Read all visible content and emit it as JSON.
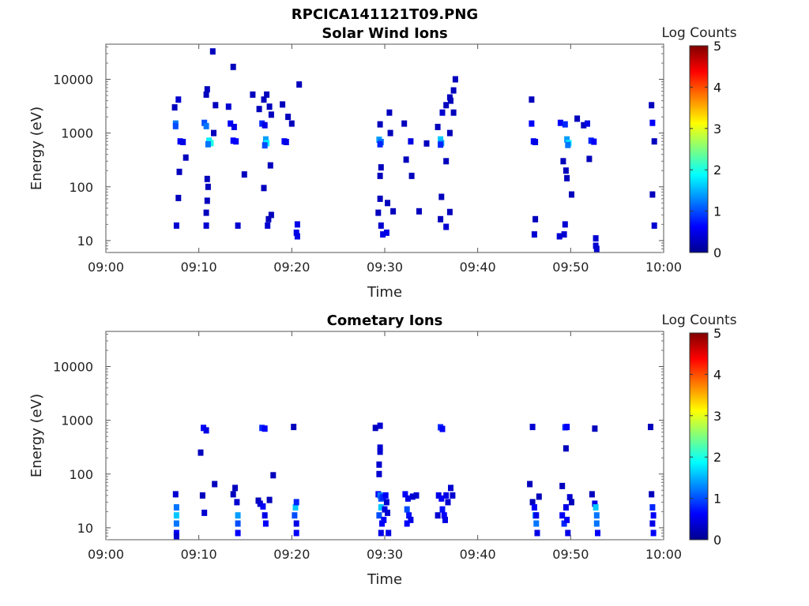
{
  "figure": {
    "title": "RPCICA141121T09.PNG"
  },
  "colorbar": {
    "label": "Log Counts",
    "ticks": [
      "0",
      "1",
      "2",
      "3",
      "4",
      "5"
    ],
    "range": [
      0,
      5
    ],
    "colormap": "jet"
  },
  "chart_data": [
    {
      "type": "heatmap",
      "title": "Solar Wind Ions",
      "xlabel": "Time",
      "ylabel": "Energy (eV)",
      "x_ticks": [
        "09:00",
        "09:10",
        "09:20",
        "09:30",
        "09:40",
        "09:50",
        "10:00"
      ],
      "xlim_minutes": [
        0,
        60
      ],
      "y_ticks": [
        "10",
        "100",
        "1000",
        "10000"
      ],
      "ylim": [
        6,
        45000
      ],
      "y_scale": "log",
      "z_label": "Log Counts",
      "z_range": [
        0,
        5
      ],
      "points": [
        [
          7.5,
          1500,
          1.2
        ],
        [
          7.5,
          1350,
          1.0
        ],
        [
          8.0,
          700,
          0.6
        ],
        [
          8.3,
          680,
          0.5
        ],
        [
          7.8,
          4200,
          0.4
        ],
        [
          7.4,
          3000,
          0.3
        ],
        [
          7.9,
          190,
          0.3
        ],
        [
          7.8,
          62,
          0.3
        ],
        [
          7.6,
          19,
          0.4
        ],
        [
          8.6,
          350,
          0.3
        ],
        [
          10.6,
          1550,
          1.0
        ],
        [
          10.8,
          1350,
          1.2
        ],
        [
          11.1,
          720,
          1.8
        ],
        [
          11.3,
          650,
          2.0
        ],
        [
          11.0,
          620,
          1.2
        ],
        [
          10.9,
          6500,
          0.3
        ],
        [
          10.8,
          5200,
          0.3
        ],
        [
          11.5,
          33000,
          0.3
        ],
        [
          10.9,
          140,
          0.3
        ],
        [
          11.0,
          100,
          0.3
        ],
        [
          10.9,
          55,
          0.3
        ],
        [
          10.8,
          33,
          0.3
        ],
        [
          10.8,
          19,
          0.4
        ],
        [
          11.8,
          3300,
          0.3
        ],
        [
          11.6,
          1000,
          0.3
        ],
        [
          13.2,
          3100,
          0.4
        ],
        [
          13.7,
          17000,
          0.3
        ],
        [
          13.4,
          1500,
          0.6
        ],
        [
          13.8,
          1300,
          0.5
        ],
        [
          13.7,
          720,
          0.6
        ],
        [
          14.0,
          700,
          0.6
        ],
        [
          14.2,
          19,
          0.4
        ],
        [
          14.9,
          170,
          0.3
        ],
        [
          15.8,
          5200,
          0.3
        ],
        [
          16.5,
          2800,
          0.3
        ],
        [
          16.8,
          1500,
          0.8
        ],
        [
          17.1,
          1400,
          0.5
        ],
        [
          17.2,
          760,
          1.4
        ],
        [
          17.3,
          650,
          1.8
        ],
        [
          17.1,
          590,
          1.0
        ],
        [
          17.3,
          5200,
          0.3
        ],
        [
          17.0,
          4200,
          0.3
        ],
        [
          17.6,
          3100,
          0.3
        ],
        [
          17.8,
          2200,
          0.3
        ],
        [
          17.0,
          95,
          0.3
        ],
        [
          17.7,
          250,
          0.3
        ],
        [
          17.5,
          25,
          0.3
        ],
        [
          17.8,
          30,
          0.3
        ],
        [
          17.4,
          19,
          0.4
        ],
        [
          19.0,
          3400,
          0.3
        ],
        [
          19.2,
          700,
          0.6
        ],
        [
          19.4,
          680,
          0.5
        ],
        [
          19.6,
          2000,
          0.3
        ],
        [
          20.0,
          1500,
          0.3
        ],
        [
          20.8,
          8000,
          0.3
        ],
        [
          20.6,
          20,
          0.5
        ],
        [
          20.5,
          14,
          0.5
        ],
        [
          20.6,
          12,
          0.5
        ],
        [
          29.5,
          1450,
          0.3
        ],
        [
          29.4,
          750,
          1.4
        ],
        [
          29.6,
          680,
          1.2
        ],
        [
          29.5,
          620,
          0.8
        ],
        [
          29.6,
          230,
          0.3
        ],
        [
          29.5,
          160,
          0.3
        ],
        [
          29.5,
          60,
          0.3
        ],
        [
          29.3,
          33,
          0.3
        ],
        [
          29.6,
          19,
          0.4
        ],
        [
          29.8,
          13,
          0.5
        ],
        [
          30.2,
          14,
          0.5
        ],
        [
          30.5,
          2400,
          0.3
        ],
        [
          30.6,
          1000,
          0.3
        ],
        [
          30.3,
          50,
          0.3
        ],
        [
          30.9,
          35,
          0.3
        ],
        [
          32.1,
          1500,
          0.3
        ],
        [
          32.8,
          700,
          0.5
        ],
        [
          32.3,
          320,
          0.3
        ],
        [
          32.9,
          160,
          0.3
        ],
        [
          33.7,
          35,
          0.3
        ],
        [
          34.5,
          640,
          0.3
        ],
        [
          35.7,
          1300,
          0.3
        ],
        [
          36.0,
          760,
          1.6
        ],
        [
          36.1,
          650,
          1.4
        ],
        [
          36.0,
          610,
          0.8
        ],
        [
          36.2,
          2400,
          0.4
        ],
        [
          36.6,
          3300,
          0.3
        ],
        [
          37.0,
          4600,
          0.3
        ],
        [
          37.4,
          6200,
          0.3
        ],
        [
          37.1,
          4000,
          0.3
        ],
        [
          37.6,
          10000,
          0.3
        ],
        [
          37.4,
          2400,
          0.3
        ],
        [
          37.0,
          1000,
          0.3
        ],
        [
          36.1,
          65,
          0.3
        ],
        [
          36.0,
          25,
          0.3
        ],
        [
          36.6,
          18,
          0.4
        ],
        [
          37.0,
          34,
          0.3
        ],
        [
          36.6,
          300,
          0.3
        ],
        [
          45.8,
          4200,
          0.3
        ],
        [
          45.8,
          1500,
          0.6
        ],
        [
          46.0,
          700,
          0.6
        ],
        [
          46.2,
          680,
          0.5
        ],
        [
          46.2,
          25,
          0.3
        ],
        [
          46.1,
          13,
          0.4
        ],
        [
          48.9,
          1550,
          0.6
        ],
        [
          49.4,
          1450,
          0.8
        ],
        [
          49.6,
          760,
          1.4
        ],
        [
          49.8,
          650,
          1.8
        ],
        [
          49.7,
          600,
          1.2
        ],
        [
          49.2,
          300,
          0.3
        ],
        [
          49.5,
          200,
          0.3
        ],
        [
          49.6,
          145,
          0.3
        ],
        [
          50.1,
          72,
          0.3
        ],
        [
          48.8,
          12,
          0.4
        ],
        [
          49.3,
          13,
          0.4
        ],
        [
          49.4,
          20,
          0.4
        ],
        [
          50.7,
          1850,
          0.3
        ],
        [
          51.4,
          1400,
          0.3
        ],
        [
          51.8,
          1500,
          0.5
        ],
        [
          52.2,
          720,
          0.8
        ],
        [
          52.5,
          690,
          0.6
        ],
        [
          52.0,
          330,
          0.3
        ],
        [
          52.7,
          11,
          0.4
        ],
        [
          52.7,
          8,
          0.4
        ],
        [
          52.8,
          7,
          0.4
        ],
        [
          58.7,
          3300,
          0.3
        ],
        [
          58.8,
          1550,
          0.6
        ],
        [
          59.0,
          700,
          0.3
        ],
        [
          58.8,
          72,
          0.3
        ],
        [
          59.0,
          19,
          0.4
        ]
      ]
    },
    {
      "type": "heatmap",
      "title": "Cometary Ions",
      "xlabel": "Time",
      "ylabel": "Energy (eV)",
      "x_ticks": [
        "09:00",
        "09:10",
        "09:20",
        "09:30",
        "09:40",
        "09:50",
        "10:00"
      ],
      "xlim_minutes": [
        0,
        60
      ],
      "y_ticks": [
        "10",
        "100",
        "1000",
        "10000"
      ],
      "ylim": [
        6,
        45000
      ],
      "y_scale": "log",
      "z_label": "Log Counts",
      "z_range": [
        0,
        5
      ],
      "points": [
        [
          7.5,
          42,
          0.4
        ],
        [
          7.6,
          24,
          1.2
        ],
        [
          7.6,
          17,
          1.6
        ],
        [
          7.6,
          12,
          1.2
        ],
        [
          7.6,
          8,
          0.6
        ],
        [
          7.6,
          7,
          0.4
        ],
        [
          10.5,
          720,
          0.6
        ],
        [
          10.8,
          650,
          0.5
        ],
        [
          10.2,
          250,
          0.3
        ],
        [
          10.4,
          40,
          0.3
        ],
        [
          10.6,
          19,
          0.4
        ],
        [
          11.7,
          65,
          0.3
        ],
        [
          13.7,
          42,
          0.3
        ],
        [
          13.9,
          55,
          0.3
        ],
        [
          14.1,
          30,
          0.4
        ],
        [
          14.2,
          17,
          1.4
        ],
        [
          14.2,
          12,
          1.0
        ],
        [
          14.2,
          8,
          0.6
        ],
        [
          16.4,
          32,
          0.3
        ],
        [
          16.8,
          720,
          0.8
        ],
        [
          17.1,
          700,
          0.6
        ],
        [
          16.6,
          28,
          0.4
        ],
        [
          16.9,
          25,
          0.6
        ],
        [
          17.1,
          17,
          0.5
        ],
        [
          17.2,
          12,
          0.6
        ],
        [
          17.6,
          33,
          0.3
        ],
        [
          18.0,
          95,
          0.3
        ],
        [
          20.2,
          750,
          0.3
        ],
        [
          20.3,
          17,
          1.0
        ],
        [
          20.4,
          24,
          1.6
        ],
        [
          20.5,
          30,
          0.8
        ],
        [
          20.5,
          12,
          0.5
        ],
        [
          20.5,
          8,
          0.6
        ],
        [
          29.0,
          720,
          0.3
        ],
        [
          29.5,
          790,
          0.4
        ],
        [
          29.5,
          310,
          0.4
        ],
        [
          29.5,
          260,
          0.4
        ],
        [
          29.4,
          150,
          0.4
        ],
        [
          29.4,
          100,
          0.4
        ],
        [
          29.3,
          42,
          0.6
        ],
        [
          29.5,
          40,
          1.2
        ],
        [
          29.6,
          35,
          1.0
        ],
        [
          29.8,
          37,
          0.8
        ],
        [
          29.6,
          24,
          1.6
        ],
        [
          29.4,
          17,
          1.0
        ],
        [
          29.7,
          12,
          0.6
        ],
        [
          29.9,
          14,
          0.6
        ],
        [
          30.0,
          22,
          0.5
        ],
        [
          30.1,
          40,
          0.6
        ],
        [
          30.2,
          30,
          0.4
        ],
        [
          30.3,
          19,
          0.4
        ],
        [
          30.4,
          8,
          0.5
        ],
        [
          29.6,
          8,
          0.5
        ],
        [
          32.2,
          42,
          0.6
        ],
        [
          32.5,
          35,
          0.5
        ],
        [
          32.4,
          22,
          1.0
        ],
        [
          32.6,
          17,
          0.7
        ],
        [
          32.8,
          14,
          0.5
        ],
        [
          32.4,
          12,
          0.6
        ],
        [
          33.0,
          38,
          0.4
        ],
        [
          33.4,
          40,
          0.4
        ],
        [
          36.0,
          740,
          0.8
        ],
        [
          36.2,
          690,
          0.6
        ],
        [
          35.8,
          40,
          0.5
        ],
        [
          36.1,
          35,
          0.6
        ],
        [
          36.2,
          22,
          0.7
        ],
        [
          36.4,
          17,
          0.6
        ],
        [
          36.6,
          40,
          0.5
        ],
        [
          36.5,
          14,
          0.5
        ],
        [
          36.8,
          30,
          0.4
        ],
        [
          37.1,
          55,
          0.4
        ],
        [
          37.3,
          40,
          0.4
        ],
        [
          35.7,
          17,
          0.4
        ],
        [
          45.9,
          750,
          0.4
        ],
        [
          45.6,
          65,
          0.3
        ],
        [
          45.9,
          30,
          0.3
        ],
        [
          46.1,
          24,
          0.6
        ],
        [
          46.2,
          17,
          1.2
        ],
        [
          46.3,
          12,
          1.2
        ],
        [
          46.4,
          8,
          0.5
        ],
        [
          46.6,
          38,
          0.3
        ],
        [
          46.3,
          17,
          0.5
        ],
        [
          49.4,
          740,
          0.8
        ],
        [
          49.6,
          750,
          0.6
        ],
        [
          49.5,
          300,
          0.3
        ],
        [
          49.1,
          60,
          0.3
        ],
        [
          49.1,
          17,
          0.6
        ],
        [
          49.3,
          12,
          0.8
        ],
        [
          49.5,
          24,
          0.5
        ],
        [
          49.6,
          14,
          0.6
        ],
        [
          49.7,
          8,
          0.5
        ],
        [
          49.9,
          37,
          0.4
        ],
        [
          50.1,
          30,
          0.3
        ],
        [
          52.6,
          700,
          0.3
        ],
        [
          52.3,
          42,
          0.3
        ],
        [
          52.6,
          28,
          0.5
        ],
        [
          52.7,
          24,
          1.6
        ],
        [
          52.8,
          17,
          1.2
        ],
        [
          52.8,
          12,
          1.2
        ],
        [
          52.9,
          8,
          0.6
        ],
        [
          58.6,
          750,
          0.3
        ],
        [
          58.7,
          42,
          0.3
        ],
        [
          58.8,
          24,
          0.8
        ],
        [
          58.9,
          17,
          0.6
        ],
        [
          58.8,
          12,
          0.5
        ],
        [
          58.9,
          8,
          0.6
        ]
      ]
    }
  ]
}
